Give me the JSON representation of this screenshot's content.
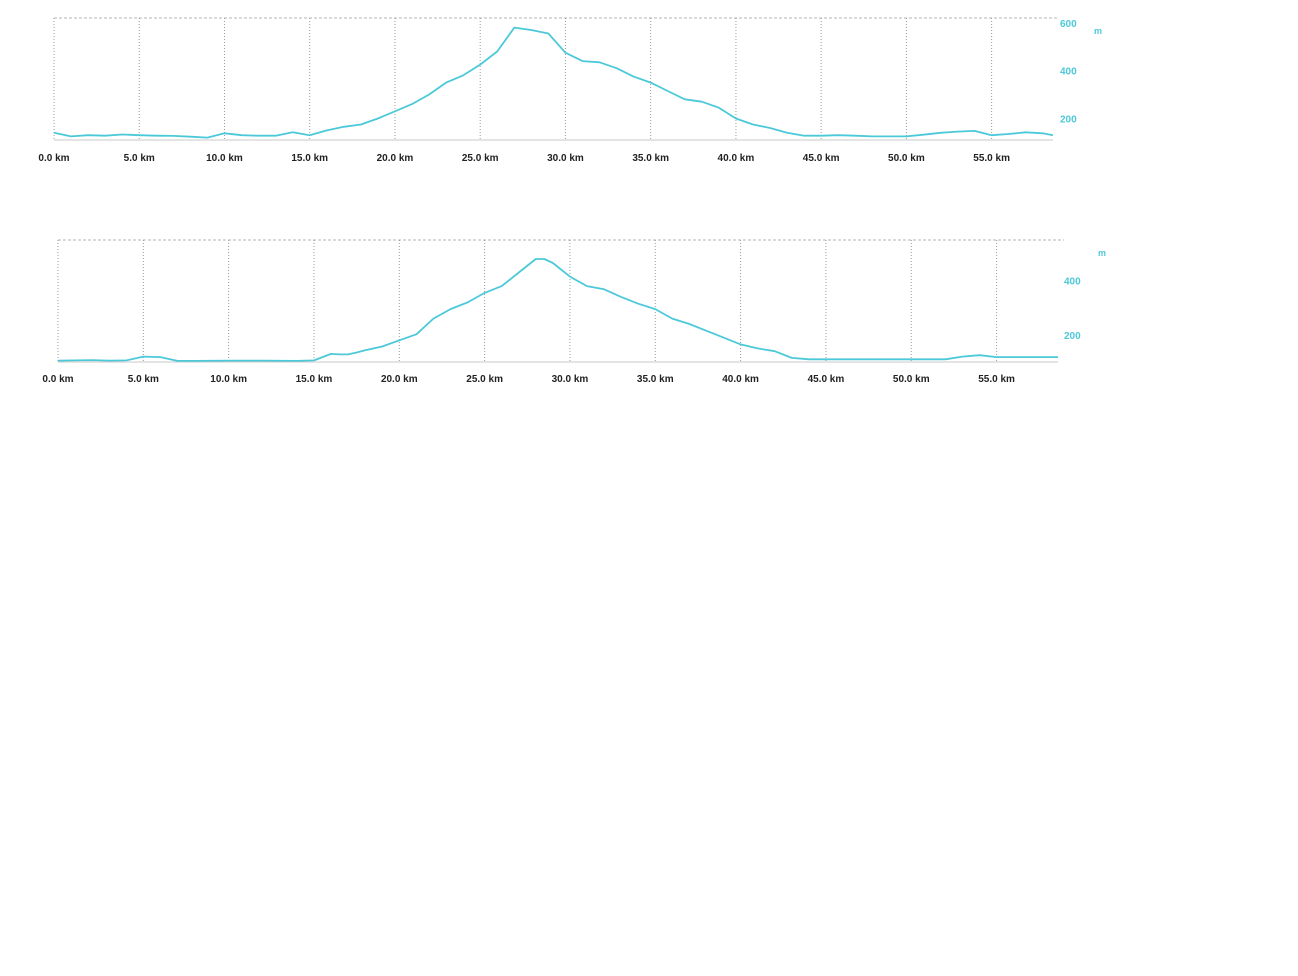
{
  "chart_data": [
    {
      "type": "line",
      "xlabel": "",
      "ylabel": "m",
      "xlim": [
        0,
        58.6
      ],
      "ylim": [
        110,
        620
      ],
      "x_ticks": [
        0,
        5,
        10,
        15,
        20,
        25,
        30,
        35,
        40,
        45,
        50,
        55
      ],
      "x_tick_labels": [
        "0.0 km",
        "5.0 km",
        "10.0 km",
        "15.0 km",
        "20.0 km",
        "25.0 km",
        "30.0 km",
        "35.0 km",
        "40.0 km",
        "45.0 km",
        "50.0 km",
        "55.0 km"
      ],
      "y_ticks": [
        200,
        400,
        600
      ],
      "y_tick_labels": [
        "200",
        "400",
        "600"
      ],
      "grid": true,
      "line_color": "#4cc9d9",
      "series": [
        {
          "x": [
            0,
            1,
            2,
            3,
            4,
            5,
            6,
            7,
            8,
            9,
            10,
            11,
            12,
            13,
            14,
            15,
            16,
            17,
            18,
            19,
            20,
            21,
            22,
            23,
            24,
            25,
            26,
            27,
            28,
            29,
            30,
            31,
            32,
            33,
            34,
            35,
            36,
            37,
            38,
            39,
            40,
            41,
            42,
            43,
            44,
            45,
            46,
            47,
            48,
            49,
            50,
            51,
            52,
            53,
            54,
            55,
            56,
            57,
            58,
            58.6
          ],
          "y": [
            140,
            125,
            130,
            128,
            133,
            130,
            128,
            127,
            124,
            120,
            138,
            130,
            128,
            128,
            142,
            130,
            150,
            165,
            175,
            200,
            230,
            260,
            300,
            350,
            380,
            425,
            480,
            580,
            570,
            555,
            475,
            440,
            435,
            410,
            375,
            350,
            315,
            280,
            270,
            245,
            200,
            175,
            160,
            140,
            128,
            128,
            130,
            128,
            125,
            125,
            125,
            132,
            140,
            145,
            148,
            130,
            135,
            142,
            138,
            130
          ]
        }
      ]
    },
    {
      "type": "line",
      "xlabel": "",
      "ylabel": "m",
      "xlim": [
        0,
        58.6
      ],
      "ylim": [
        100,
        550
      ],
      "x_ticks": [
        0,
        5,
        10,
        15,
        20,
        25,
        30,
        35,
        40,
        45,
        50,
        55
      ],
      "x_tick_labels": [
        "0.0 km",
        "5.0 km",
        "10.0 km",
        "15.0 km",
        "20.0 km",
        "25.0 km",
        "30.0 km",
        "35.0 km",
        "40.0 km",
        "45.0 km",
        "50.0 km",
        "55.0 km"
      ],
      "y_ticks": [
        200,
        400
      ],
      "y_tick_labels": [
        "200",
        "400"
      ],
      "grid": true,
      "line_color": "#4cc9d9",
      "series": [
        {
          "x": [
            0,
            1,
            2,
            3,
            4,
            5,
            6,
            7,
            8,
            10,
            12,
            14,
            15,
            16,
            16.5,
            17,
            17.5,
            18,
            19,
            20,
            21,
            22,
            23,
            24,
            25,
            26,
            27,
            28,
            28.5,
            29,
            30,
            31,
            32,
            33,
            34,
            35,
            36,
            37,
            38,
            39,
            40,
            41,
            42,
            43,
            44,
            46,
            48,
            50,
            52,
            53,
            54,
            55,
            56,
            57,
            58,
            58.6
          ],
          "y": [
            105,
            106,
            107,
            105,
            106,
            120,
            118,
            104,
            104,
            105,
            105,
            104,
            106,
            130,
            128,
            128,
            135,
            143,
            157,
            180,
            202,
            260,
            295,
            320,
            355,
            380,
            430,
            480,
            480,
            465,
            415,
            380,
            368,
            340,
            315,
            295,
            260,
            240,
            215,
            190,
            165,
            150,
            140,
            115,
            110,
            110,
            110,
            110,
            110,
            120,
            125,
            118,
            118,
            118,
            118,
            118
          ]
        }
      ]
    }
  ]
}
